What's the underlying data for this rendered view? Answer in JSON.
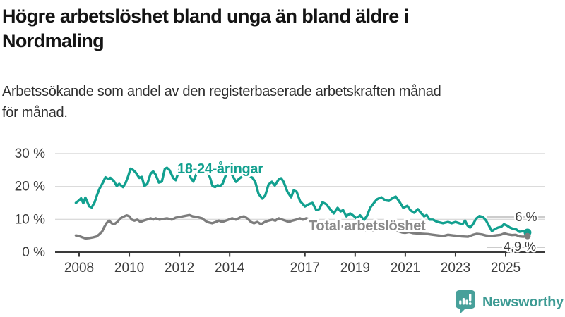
{
  "header": {
    "title_line1": "Högre arbetslöshet bland unga än bland äldre i",
    "title_line2": "Nordmaling",
    "subtitle_line1": "Arbetssökande som andel av den registerbaserade arbetskraften månad",
    "subtitle_line2": "för månad."
  },
  "footer": {
    "brand": "Newsworthy",
    "logo_icon": "bar-chart-speech-bubble-icon",
    "brand_color": "#3e9b94",
    "logo_bg_color": "#47a09a"
  },
  "chart_data": {
    "type": "line",
    "title": "Högre arbetslöshet bland unga än bland äldre i Nordmaling",
    "subtitle": "Arbetssökande som andel av den registerbaserade arbetskraften månad för månad.",
    "xlabel": "",
    "ylabel": "",
    "unit": "%",
    "grid": "horizontal",
    "legend_position": "inline-labels",
    "xlim": [
      2007.6,
      2026.4
    ],
    "ylim": [
      0,
      32
    ],
    "x_ticks": [
      {
        "value": 2008,
        "label": "2008"
      },
      {
        "value": 2010,
        "label": "2010"
      },
      {
        "value": 2012,
        "label": "2012"
      },
      {
        "value": 2014,
        "label": "2014"
      },
      {
        "value": 2017,
        "label": "2017"
      },
      {
        "value": 2019,
        "label": "2019"
      },
      {
        "value": 2021,
        "label": "2021"
      },
      {
        "value": 2023,
        "label": "2023"
      },
      {
        "value": 2025,
        "label": "2025"
      }
    ],
    "y_ticks": [
      {
        "value": 0,
        "label": "0 %"
      },
      {
        "value": 10,
        "label": "10 %"
      },
      {
        "value": 20,
        "label": "20 %"
      },
      {
        "value": 30,
        "label": "30 %"
      }
    ],
    "series": [
      {
        "name": "18-24-åringar",
        "color": "#12a08f",
        "label_color": "#12a08f",
        "end_label": "6 %",
        "end_value": 6.0,
        "points": [
          [
            2007.87,
            15.0
          ],
          [
            2008.0,
            15.8
          ],
          [
            2008.08,
            16.4
          ],
          [
            2008.17,
            14.9
          ],
          [
            2008.25,
            16.6
          ],
          [
            2008.4,
            14.0
          ],
          [
            2008.5,
            13.6
          ],
          [
            2008.62,
            15.2
          ],
          [
            2008.72,
            17.5
          ],
          [
            2008.82,
            19.4
          ],
          [
            2008.95,
            21.2
          ],
          [
            2009.05,
            22.8
          ],
          [
            2009.15,
            22.3
          ],
          [
            2009.25,
            22.6
          ],
          [
            2009.4,
            21.5
          ],
          [
            2009.5,
            20.1
          ],
          [
            2009.6,
            20.8
          ],
          [
            2009.75,
            19.8
          ],
          [
            2009.85,
            21.0
          ],
          [
            2009.95,
            23.0
          ],
          [
            2010.05,
            25.4
          ],
          [
            2010.15,
            25.0
          ],
          [
            2010.25,
            24.3
          ],
          [
            2010.4,
            22.6
          ],
          [
            2010.5,
            22.9
          ],
          [
            2010.6,
            20.1
          ],
          [
            2010.72,
            20.8
          ],
          [
            2010.85,
            23.9
          ],
          [
            2010.95,
            24.6
          ],
          [
            2011.05,
            23.6
          ],
          [
            2011.18,
            21.2
          ],
          [
            2011.3,
            21.5
          ],
          [
            2011.42,
            25.4
          ],
          [
            2011.5,
            25.7
          ],
          [
            2011.6,
            25.0
          ],
          [
            2011.75,
            22.6
          ],
          [
            2011.85,
            21.9
          ],
          [
            2011.95,
            24.0
          ],
          [
            2012.05,
            27.0
          ],
          [
            2012.15,
            26.4
          ],
          [
            2012.3,
            25.4
          ],
          [
            2012.45,
            22.6
          ],
          [
            2012.55,
            21.5
          ],
          [
            2012.65,
            23.3
          ],
          [
            2012.75,
            25.4
          ],
          [
            2012.82,
            27.0
          ],
          [
            2012.92,
            26.8
          ],
          [
            2013.02,
            25.5
          ],
          [
            2013.12,
            24.6
          ],
          [
            2013.22,
            22.6
          ],
          [
            2013.32,
            20.1
          ],
          [
            2013.42,
            19.8
          ],
          [
            2013.52,
            20.4
          ],
          [
            2013.62,
            20.1
          ],
          [
            2013.72,
            20.8
          ],
          [
            2013.85,
            23.5
          ],
          [
            2013.95,
            24.5
          ],
          [
            2014.1,
            23.5
          ],
          [
            2014.25,
            21.4
          ],
          [
            2014.4,
            22.5
          ],
          [
            2014.6,
            23.5
          ],
          [
            2014.75,
            23.1
          ],
          [
            2014.9,
            22.7
          ],
          [
            2015.02,
            21.4
          ],
          [
            2015.15,
            17.8
          ],
          [
            2015.3,
            16.3
          ],
          [
            2015.42,
            17.3
          ],
          [
            2015.55,
            20.6
          ],
          [
            2015.68,
            21.4
          ],
          [
            2015.8,
            20.3
          ],
          [
            2015.95,
            22.1
          ],
          [
            2016.05,
            22.5
          ],
          [
            2016.15,
            21.4
          ],
          [
            2016.3,
            18.4
          ],
          [
            2016.45,
            16.7
          ],
          [
            2016.55,
            18.8
          ],
          [
            2016.67,
            18.4
          ],
          [
            2016.8,
            15.6
          ],
          [
            2017.0,
            13.9
          ],
          [
            2017.15,
            14.6
          ],
          [
            2017.3,
            15.0
          ],
          [
            2017.45,
            12.8
          ],
          [
            2017.57,
            13.1
          ],
          [
            2017.7,
            15.2
          ],
          [
            2017.85,
            14.6
          ],
          [
            2018.0,
            13.1
          ],
          [
            2018.15,
            11.8
          ],
          [
            2018.3,
            13.5
          ],
          [
            2018.42,
            12.4
          ],
          [
            2018.52,
            12.8
          ],
          [
            2018.65,
            10.9
          ],
          [
            2018.8,
            11.8
          ],
          [
            2018.9,
            11.3
          ],
          [
            2019.05,
            10.3
          ],
          [
            2019.2,
            11.2
          ],
          [
            2019.35,
            9.8
          ],
          [
            2019.47,
            11.0
          ],
          [
            2019.6,
            13.5
          ],
          [
            2019.75,
            15.0
          ],
          [
            2019.87,
            16.1
          ],
          [
            2020.05,
            16.7
          ],
          [
            2020.2,
            15.8
          ],
          [
            2020.35,
            15.6
          ],
          [
            2020.5,
            16.5
          ],
          [
            2020.62,
            16.9
          ],
          [
            2020.78,
            15.2
          ],
          [
            2020.92,
            13.5
          ],
          [
            2021.08,
            14.1
          ],
          [
            2021.2,
            12.8
          ],
          [
            2021.35,
            12.0
          ],
          [
            2021.5,
            13.1
          ],
          [
            2021.62,
            12.0
          ],
          [
            2021.75,
            10.9
          ],
          [
            2021.85,
            11.3
          ],
          [
            2021.97,
            9.9
          ],
          [
            2022.1,
            9.9
          ],
          [
            2022.25,
            9.3
          ],
          [
            2022.4,
            9.0
          ],
          [
            2022.5,
            8.8
          ],
          [
            2022.7,
            9.2
          ],
          [
            2022.85,
            8.8
          ],
          [
            2023.0,
            9.2
          ],
          [
            2023.15,
            8.8
          ],
          [
            2023.28,
            8.5
          ],
          [
            2023.38,
            9.6
          ],
          [
            2023.48,
            8.1
          ],
          [
            2023.58,
            7.5
          ],
          [
            2023.7,
            8.5
          ],
          [
            2023.82,
            10.2
          ],
          [
            2023.95,
            11.0
          ],
          [
            2024.1,
            10.7
          ],
          [
            2024.22,
            9.6
          ],
          [
            2024.33,
            8.1
          ],
          [
            2024.45,
            6.4
          ],
          [
            2024.58,
            7.1
          ],
          [
            2024.7,
            7.5
          ],
          [
            2024.82,
            7.7
          ],
          [
            2024.93,
            8.5
          ],
          [
            2025.05,
            8.1
          ],
          [
            2025.17,
            7.5
          ],
          [
            2025.3,
            7.1
          ],
          [
            2025.43,
            6.9
          ],
          [
            2025.55,
            6.2
          ],
          [
            2025.7,
            6.4
          ],
          [
            2025.87,
            6.0
          ]
        ]
      },
      {
        "name": "Total arbetslöshet",
        "color": "#7d7d7d",
        "label_color": "#8a8a8a",
        "end_label": "4,9 %",
        "end_value": 4.9,
        "points": [
          [
            2007.87,
            5.1
          ],
          [
            2008.0,
            4.9
          ],
          [
            2008.1,
            4.6
          ],
          [
            2008.25,
            4.2
          ],
          [
            2008.4,
            4.3
          ],
          [
            2008.55,
            4.5
          ],
          [
            2008.7,
            4.8
          ],
          [
            2008.8,
            5.4
          ],
          [
            2008.92,
            6.3
          ],
          [
            2009.0,
            7.6
          ],
          [
            2009.1,
            8.9
          ],
          [
            2009.2,
            9.6
          ],
          [
            2009.3,
            8.8
          ],
          [
            2009.4,
            8.5
          ],
          [
            2009.52,
            9.2
          ],
          [
            2009.65,
            10.3
          ],
          [
            2009.8,
            10.9
          ],
          [
            2009.9,
            11.2
          ],
          [
            2010.0,
            10.9
          ],
          [
            2010.1,
            9.9
          ],
          [
            2010.2,
            9.6
          ],
          [
            2010.32,
            9.9
          ],
          [
            2010.45,
            9.2
          ],
          [
            2010.57,
            9.6
          ],
          [
            2010.7,
            9.9
          ],
          [
            2010.85,
            10.3
          ],
          [
            2010.95,
            9.9
          ],
          [
            2011.05,
            10.3
          ],
          [
            2011.2,
            9.9
          ],
          [
            2011.32,
            10.1
          ],
          [
            2011.5,
            10.3
          ],
          [
            2011.7,
            9.9
          ],
          [
            2011.85,
            10.5
          ],
          [
            2012.0,
            10.7
          ],
          [
            2012.2,
            11.0
          ],
          [
            2012.4,
            11.3
          ],
          [
            2012.52,
            10.9
          ],
          [
            2012.7,
            10.7
          ],
          [
            2012.9,
            10.3
          ],
          [
            2013.1,
            9.2
          ],
          [
            2013.3,
            8.8
          ],
          [
            2013.45,
            9.2
          ],
          [
            2013.57,
            9.6
          ],
          [
            2013.7,
            9.2
          ],
          [
            2013.85,
            9.6
          ],
          [
            2014.1,
            10.3
          ],
          [
            2014.25,
            9.9
          ],
          [
            2014.45,
            10.7
          ],
          [
            2014.57,
            10.9
          ],
          [
            2014.7,
            10.3
          ],
          [
            2014.85,
            9.2
          ],
          [
            2014.97,
            8.8
          ],
          [
            2015.1,
            9.2
          ],
          [
            2015.25,
            8.5
          ],
          [
            2015.4,
            9.2
          ],
          [
            2015.55,
            9.6
          ],
          [
            2015.7,
            9.9
          ],
          [
            2015.82,
            9.6
          ],
          [
            2015.95,
            10.3
          ],
          [
            2016.1,
            9.9
          ],
          [
            2016.22,
            9.6
          ],
          [
            2016.35,
            9.2
          ],
          [
            2016.5,
            9.6
          ],
          [
            2016.65,
            9.9
          ],
          [
            2016.8,
            10.3
          ],
          [
            2016.92,
            9.9
          ],
          [
            2017.05,
            10.3
          ],
          [
            2017.3,
            9.8
          ],
          [
            2017.6,
            9.3
          ],
          [
            2017.9,
            8.7
          ],
          [
            2018.2,
            8.2
          ],
          [
            2018.5,
            7.8
          ],
          [
            2018.8,
            7.4
          ],
          [
            2019.1,
            7.0
          ],
          [
            2019.4,
            6.7
          ],
          [
            2019.7,
            6.5
          ],
          [
            2019.95,
            6.6
          ],
          [
            2020.15,
            7.2
          ],
          [
            2020.35,
            7.5
          ],
          [
            2020.55,
            7.0
          ],
          [
            2020.72,
            6.4
          ],
          [
            2020.87,
            6.0
          ],
          [
            2021.0,
            5.9
          ],
          [
            2021.15,
            6.1
          ],
          [
            2021.3,
            5.8
          ],
          [
            2021.5,
            5.7
          ],
          [
            2021.7,
            5.6
          ],
          [
            2021.9,
            5.5
          ],
          [
            2022.1,
            5.3
          ],
          [
            2022.3,
            5.1
          ],
          [
            2022.5,
            4.9
          ],
          [
            2022.7,
            5.3
          ],
          [
            2022.9,
            5.1
          ],
          [
            2023.05,
            5.0
          ],
          [
            2023.25,
            4.8
          ],
          [
            2023.5,
            4.7
          ],
          [
            2023.7,
            5.3
          ],
          [
            2023.85,
            5.6
          ],
          [
            2024.05,
            5.4
          ],
          [
            2024.2,
            5.1
          ],
          [
            2024.4,
            4.9
          ],
          [
            2024.6,
            5.1
          ],
          [
            2024.8,
            5.3
          ],
          [
            2024.95,
            5.7
          ],
          [
            2025.1,
            5.4
          ],
          [
            2025.25,
            5.2
          ],
          [
            2025.4,
            5.3
          ],
          [
            2025.55,
            4.8
          ],
          [
            2025.7,
            4.7
          ],
          [
            2025.87,
            4.9
          ]
        ]
      }
    ],
    "style": {
      "grid_color": "#dbdbdb",
      "axis_color": "#3a3a3a",
      "tick_text_color": "#3d3d3d",
      "leader_line_color": "#aeaeae"
    }
  }
}
